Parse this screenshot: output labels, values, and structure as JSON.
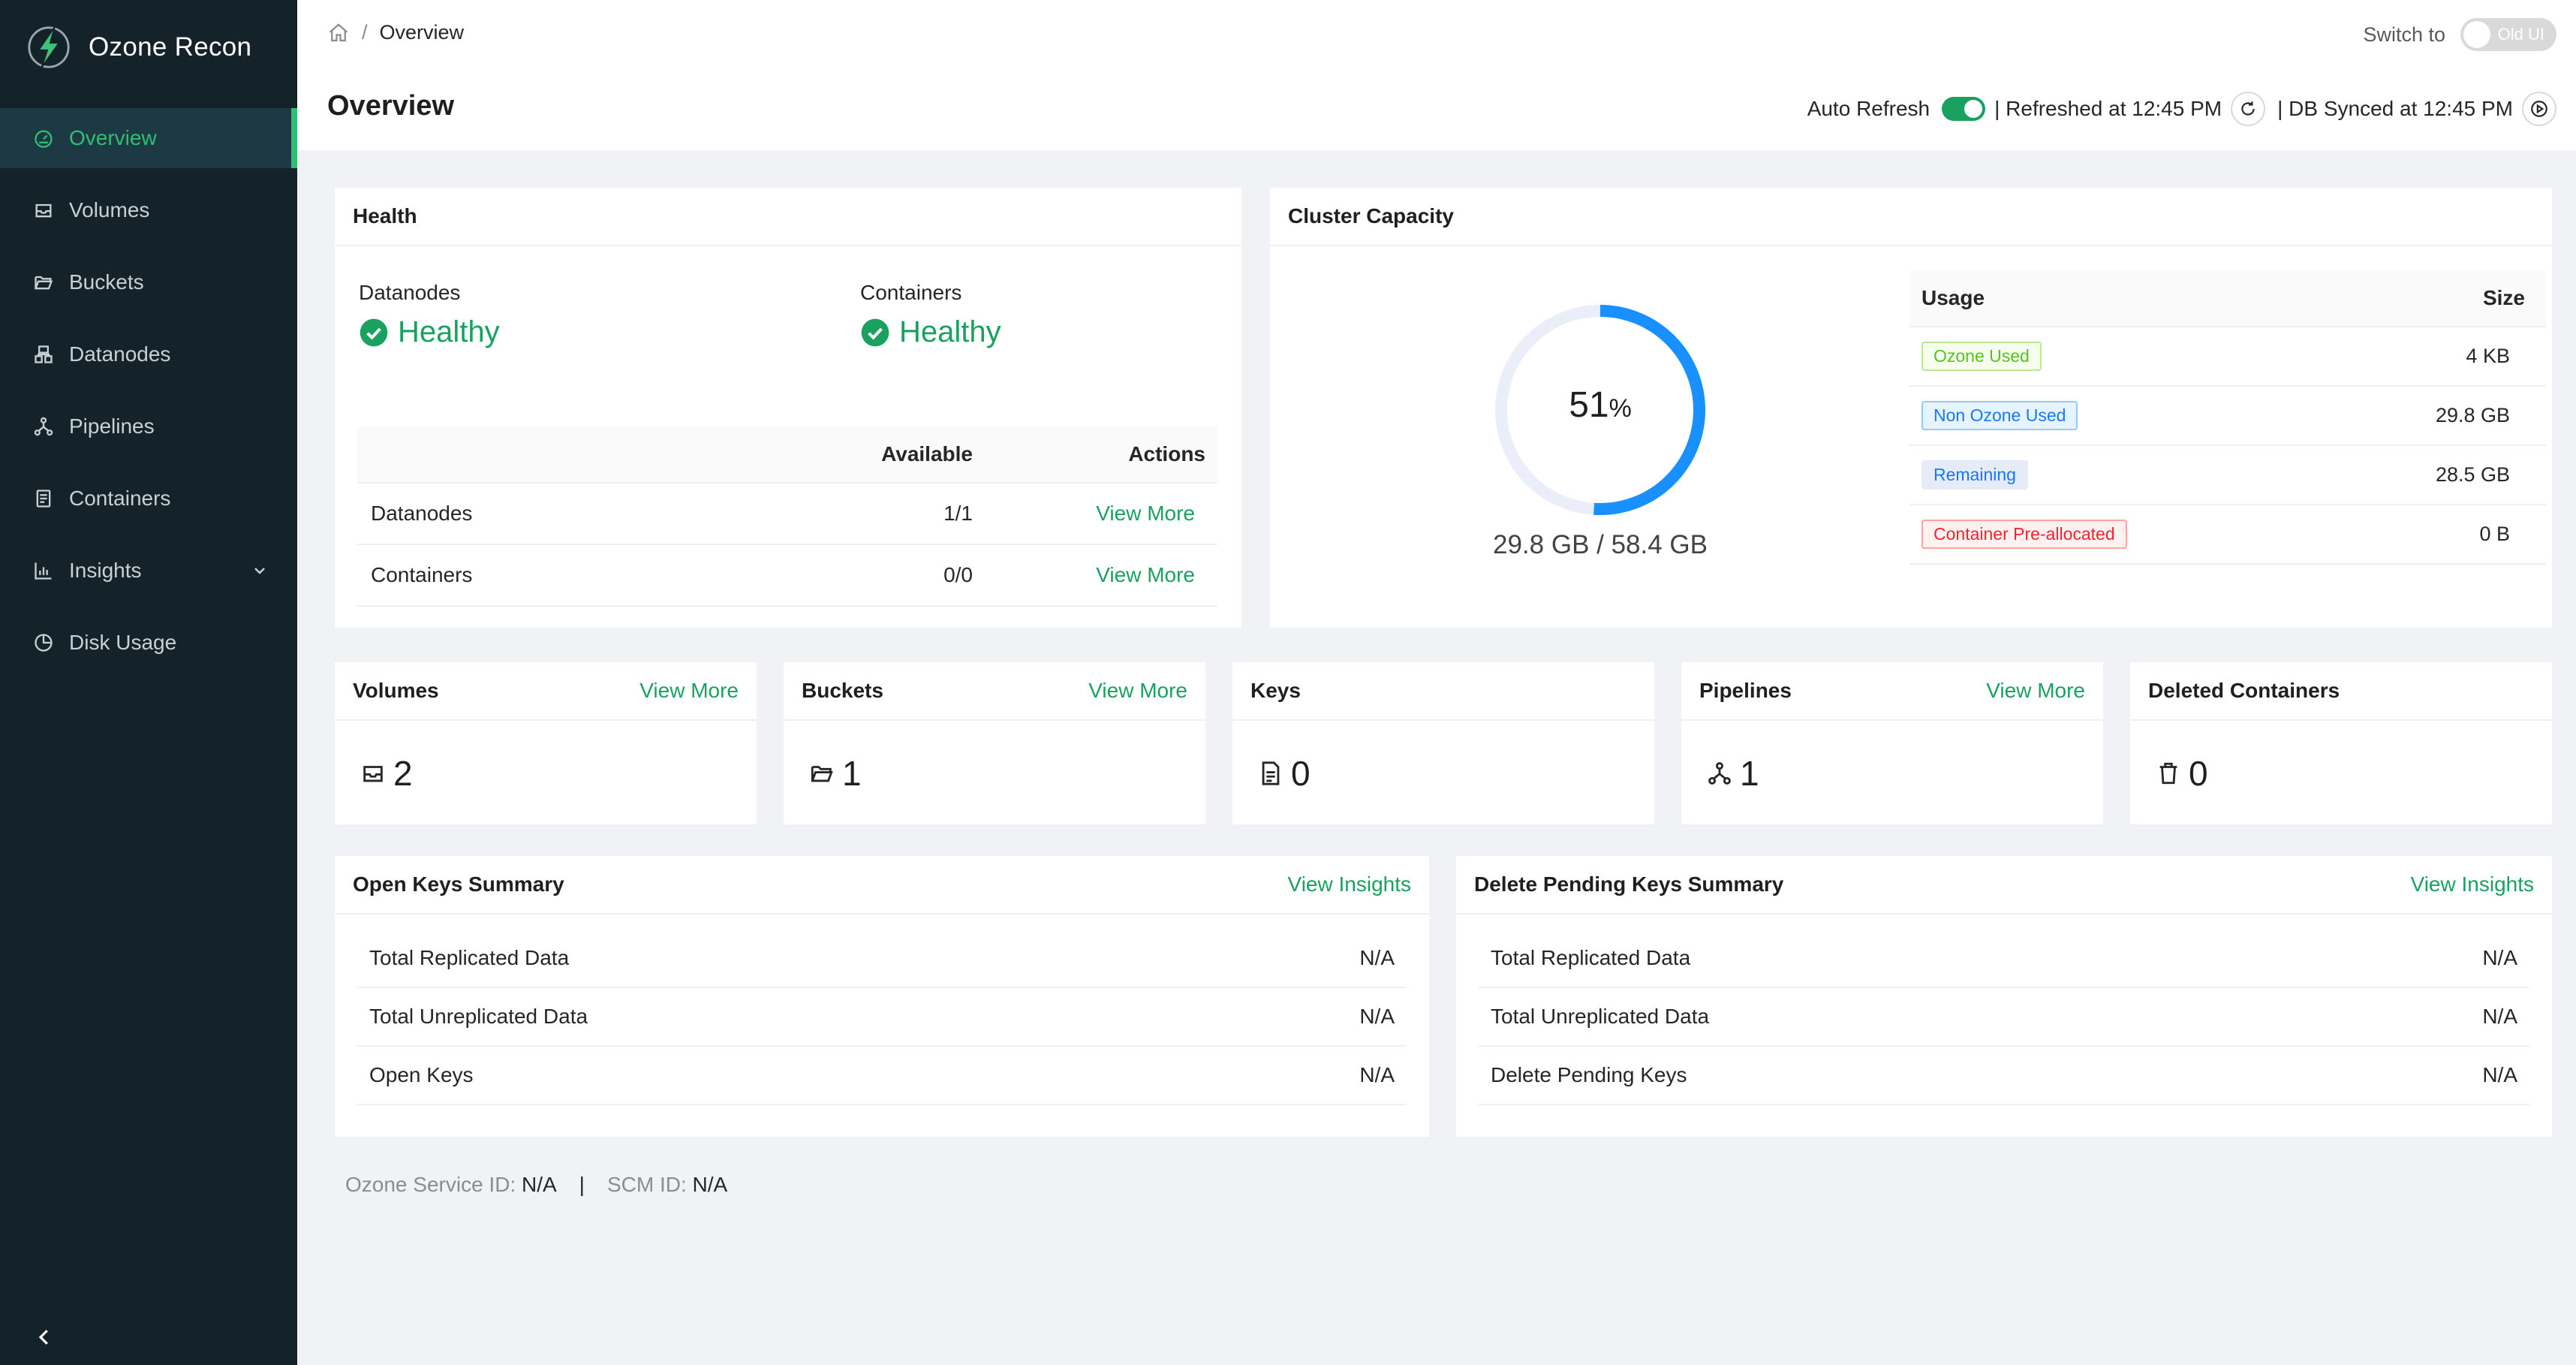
{
  "app": {
    "name": "Ozone Recon",
    "logo_icon": "lightning-bolt-icon",
    "accent_color": "#1aa160",
    "sidebar_bg": "#142329"
  },
  "sidebar": {
    "items": [
      {
        "label": "Overview",
        "icon": "dashboard-icon",
        "active": true
      },
      {
        "label": "Volumes",
        "icon": "inbox-icon"
      },
      {
        "label": "Buckets",
        "icon": "folder-open-icon"
      },
      {
        "label": "Datanodes",
        "icon": "cluster-icon"
      },
      {
        "label": "Pipelines",
        "icon": "deployment-unit-icon"
      },
      {
        "label": "Containers",
        "icon": "container-icon"
      },
      {
        "label": "Insights",
        "icon": "bar-chart-icon",
        "expandable": true
      },
      {
        "label": "Disk Usage",
        "icon": "pie-chart-icon"
      }
    ]
  },
  "header": {
    "breadcrumb": {
      "separator": "/",
      "current": "Overview"
    },
    "title": "Overview",
    "switch_label": "Switch to",
    "old_ui_label": "Old UI",
    "auto_refresh_label": "Auto Refresh",
    "refreshed_text": "| Refreshed at 12:45 PM",
    "db_synced_text": "| DB Synced at 12:45 PM"
  },
  "health": {
    "title": "Health",
    "datanodes_label": "Datanodes",
    "datanodes_status": "Healthy",
    "containers_label": "Containers",
    "containers_status": "Healthy",
    "columns": {
      "name": "",
      "available": "Available",
      "actions": "Actions"
    },
    "rows": [
      {
        "name": "Datanodes",
        "available": "1/1",
        "action": "View More"
      },
      {
        "name": "Containers",
        "available": "0/0",
        "action": "View More"
      }
    ]
  },
  "capacity": {
    "title": "Cluster Capacity",
    "percent": 51,
    "percent_text": "51",
    "percent_unit": "%",
    "total_text": "29.8 GB / 58.4 GB",
    "ring_color": "#1890ff",
    "track_color": "#e9eef8",
    "usage_header": "Usage",
    "size_header": "Size",
    "rows": [
      {
        "label": "Ozone Used",
        "size": "4 KB",
        "tag": "green"
      },
      {
        "label": "Non Ozone Used",
        "size": "29.8 GB",
        "tag": "blue"
      },
      {
        "label": "Remaining",
        "size": "28.5 GB",
        "tag": "gray"
      },
      {
        "label": "Container Pre-allocated",
        "size": "0 B",
        "tag": "red"
      }
    ]
  },
  "stats": [
    {
      "title": "Volumes",
      "link": "View More",
      "value": "2",
      "icon": "inbox-icon"
    },
    {
      "title": "Buckets",
      "link": "View More",
      "value": "1",
      "icon": "folder-open-icon"
    },
    {
      "title": "Keys",
      "link": "",
      "value": "0",
      "icon": "file-text-icon"
    },
    {
      "title": "Pipelines",
      "link": "View More",
      "value": "1",
      "icon": "deployment-unit-icon"
    },
    {
      "title": "Deleted Containers",
      "link": "",
      "value": "0",
      "icon": "delete-icon"
    }
  ],
  "open_keys": {
    "title": "Open Keys Summary",
    "link": "View Insights",
    "rows": [
      {
        "label": "Total Replicated Data",
        "value": "N/A"
      },
      {
        "label": "Total Unreplicated Data",
        "value": "N/A"
      },
      {
        "label": "Open Keys",
        "value": "N/A"
      }
    ]
  },
  "delete_pending": {
    "title": "Delete Pending Keys Summary",
    "link": "View Insights",
    "rows": [
      {
        "label": "Total Replicated Data",
        "value": "N/A"
      },
      {
        "label": "Total Unreplicated Data",
        "value": "N/A"
      },
      {
        "label": "Delete Pending Keys",
        "value": "N/A"
      }
    ]
  },
  "footer": {
    "service_label": "Ozone Service ID:",
    "service_value": "N/A",
    "separator": "|",
    "scm_label": "SCM ID:",
    "scm_value": "N/A"
  }
}
